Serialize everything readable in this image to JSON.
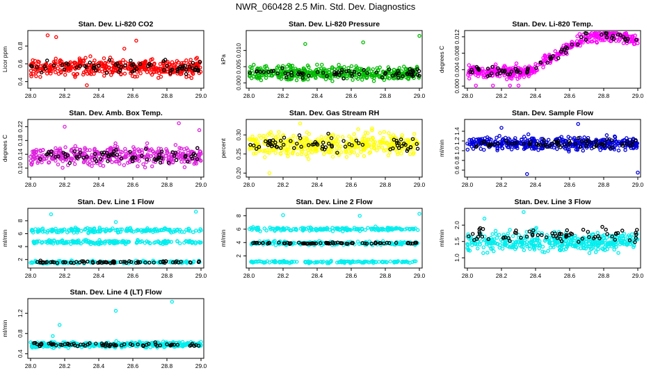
{
  "title": "NWR_060428  2.5 Min. Std. Dev. Diagnostics",
  "chart_data": [
    {
      "type": "scatter",
      "title": "Stan. Dev. Li-820 CO2",
      "ylabel": "Licor ppm",
      "color": "#ff0000",
      "xlim": [
        28.0,
        29.0
      ],
      "ylim": [
        0.35,
        0.95
      ],
      "xticks": [
        "28.0",
        "28.2",
        "28.4",
        "28.6",
        "28.8",
        "29.0"
      ],
      "yticks": [
        0.4,
        0.6,
        0.8
      ],
      "ytick_labels": [
        "0.4",
        "0.6",
        "0.8"
      ],
      "bands": [
        {
          "center": 0.56,
          "spread": 0.09,
          "n": 420
        }
      ],
      "black_points": 70,
      "outliers": [
        [
          28.1,
          0.92
        ],
        [
          28.15,
          0.9
        ],
        [
          28.33,
          0.36
        ],
        [
          28.55,
          0.77
        ],
        [
          28.62,
          0.86
        ]
      ]
    },
    {
      "type": "scatter",
      "title": "Stan. Dev. Li-820 Pressure",
      "ylabel": "kPa",
      "color": "#00bb00",
      "xlim": [
        28.0,
        29.0
      ],
      "ylim": [
        -0.001,
        0.0155
      ],
      "xticks": [
        "28.0",
        "28.2",
        "28.4",
        "28.6",
        "28.8",
        "29.0"
      ],
      "yticks": [
        0.0,
        0.005,
        0.01
      ],
      "ytick_labels": [
        "0.000",
        "0.005",
        "0.010"
      ],
      "bands": [
        {
          "center": 0.003,
          "spread": 0.002,
          "n": 420
        }
      ],
      "black_points": 70,
      "outliers": [
        [
          28.33,
          0.012
        ],
        [
          28.67,
          0.0125
        ],
        [
          29.0,
          0.0145
        ]
      ]
    },
    {
      "type": "scatter",
      "title": "Stan. Dev. Li-820 Temp.",
      "ylabel": "degrees C",
      "color": "#ff00ff",
      "xlim": [
        28.0,
        29.0
      ],
      "ylim": [
        0.0,
        0.013
      ],
      "xticks": [
        "28.0",
        "28.2",
        "28.4",
        "28.6",
        "28.8",
        "29.0"
      ],
      "yticks": [
        0.0,
        0.004,
        0.008,
        0.012
      ],
      "ytick_labels": [
        "0.000",
        "0.004",
        "0.008",
        "0.012"
      ],
      "trend": [
        [
          28.0,
          0.0035
        ],
        [
          28.35,
          0.0035
        ],
        [
          28.7,
          0.012
        ],
        [
          28.85,
          0.0125
        ],
        [
          29.0,
          0.011
        ]
      ],
      "trend_spread": 0.0015,
      "n": 420,
      "black_points": 70,
      "outliers": [
        [
          28.05,
          0.0
        ],
        [
          28.15,
          0.0
        ],
        [
          28.25,
          0.0
        ],
        [
          28.3,
          0.0
        ]
      ]
    },
    {
      "type": "scatter",
      "title": "Stan. Dev. Amb. Box Temp.",
      "ylabel": "degrees C",
      "color": "#dd22dd",
      "xlim": [
        28.0,
        29.0
      ],
      "ylim": [
        0.08,
        0.235
      ],
      "xticks": [
        "28.0",
        "28.2",
        "28.4",
        "28.6",
        "28.8",
        "29.0"
      ],
      "yticks": [
        0.1,
        0.14,
        0.18,
        0.22
      ],
      "ytick_labels": [
        "0.10",
        "0.14",
        "0.18",
        "0.22"
      ],
      "bands": [
        {
          "center": 0.135,
          "spread": 0.025,
          "n": 420
        }
      ],
      "black_points": 70,
      "outliers": [
        [
          28.2,
          0.22
        ],
        [
          28.87,
          0.23
        ],
        [
          28.99,
          0.21
        ]
      ]
    },
    {
      "type": "scatter",
      "title": "Stan. Dev. Gas Stream RH",
      "ylabel": "percent",
      "color": "#ffff00",
      "xlim": [
        28.0,
        29.0
      ],
      "ylim": [
        0.195,
        0.335
      ],
      "xticks": [
        "28.0",
        "28.2",
        "28.4",
        "28.6",
        "28.8",
        "29.0"
      ],
      "yticks": [
        0.2,
        0.25,
        0.3
      ],
      "ytick_labels": [
        "0.20",
        "0.25",
        "0.30"
      ],
      "bands": [
        {
          "center": 0.275,
          "spread": 0.028,
          "n": 420
        }
      ],
      "black_points": 70,
      "outliers": [
        [
          28.3,
          0.33
        ],
        [
          28.12,
          0.2
        ]
      ]
    },
    {
      "type": "scatter",
      "title": "Stan. Dev. Sample Flow",
      "ylabel": "ml/min",
      "color": "#0000dd",
      "xlim": [
        28.0,
        29.0
      ],
      "ylim": [
        0.5,
        1.6
      ],
      "xticks": [
        "28.0",
        "28.2",
        "28.4",
        "28.6",
        "28.8",
        "29.0"
      ],
      "yticks": [
        0.6,
        0.8,
        1.0,
        1.2,
        1.4
      ],
      "ytick_labels": [
        "0.6",
        "0.8",
        "1.0",
        "1.2",
        "1.4"
      ],
      "bands": [
        {
          "center": 1.15,
          "spread": 0.12,
          "n": 420
        }
      ],
      "black_points": 70,
      "outliers": [
        [
          28.35,
          0.52
        ],
        [
          28.2,
          1.47
        ],
        [
          28.65,
          1.55
        ],
        [
          29.0,
          0.55
        ]
      ]
    },
    {
      "type": "scatter",
      "title": "Stan. Dev. Line 1 Flow",
      "ylabel": "ml/min",
      "color": "#00eeee",
      "xlim": [
        28.0,
        29.0
      ],
      "ylim": [
        1.0,
        9.6
      ],
      "xticks": [
        "28.0",
        "28.2",
        "28.4",
        "28.6",
        "28.8",
        "29.0"
      ],
      "yticks": [
        2,
        4,
        6,
        8
      ],
      "ytick_labels": [
        "2",
        "4",
        "6",
        "8"
      ],
      "bands": [
        {
          "center": 6.5,
          "spread": 0.35,
          "n": 170
        },
        {
          "center": 4.7,
          "spread": 0.3,
          "n": 170
        },
        {
          "center": 1.6,
          "spread": 0.2,
          "n": 150
        }
      ],
      "black_band": 1.6,
      "black_points": 70,
      "outliers": [
        [
          28.12,
          9.0
        ],
        [
          28.97,
          9.4
        ],
        [
          28.5,
          7.8
        ]
      ]
    },
    {
      "type": "scatter",
      "title": "Stan. Dev. Line 2 Flow",
      "ylabel": "ml/min",
      "color": "#00eeee",
      "xlim": [
        28.0,
        29.0
      ],
      "ylim": [
        0.5,
        8.8
      ],
      "xticks": [
        "28.0",
        "28.2",
        "28.4",
        "28.6",
        "28.8",
        "29.0"
      ],
      "yticks": [
        2,
        4,
        6,
        8
      ],
      "ytick_labels": [
        "2",
        "4",
        "6",
        "8"
      ],
      "bands": [
        {
          "center": 6.0,
          "spread": 0.25,
          "n": 170
        },
        {
          "center": 3.9,
          "spread": 0.3,
          "n": 170
        },
        {
          "center": 1.1,
          "spread": 0.15,
          "n": 150
        }
      ],
      "black_band": 3.9,
      "black_points": 70,
      "outliers": [
        [
          28.2,
          8.1
        ],
        [
          28.65,
          8.0
        ],
        [
          29.0,
          8.3
        ]
      ]
    },
    {
      "type": "scatter",
      "title": "Stan. Dev. Line 3 Flow",
      "ylabel": "ml/min",
      "color": "#00eeee",
      "xlim": [
        28.0,
        29.0
      ],
      "ylim": [
        0.75,
        2.45
      ],
      "xticks": [
        "28.0",
        "28.2",
        "28.4",
        "28.6",
        "28.8",
        "29.0"
      ],
      "yticks": [
        1.0,
        1.5,
        2.0
      ],
      "ytick_labels": [
        "1.0",
        "1.5",
        "2.0"
      ],
      "bands": [
        {
          "center": 1.5,
          "spread": 0.28,
          "n": 420
        }
      ],
      "black_band": 1.7,
      "black_points": 70,
      "outliers": [
        [
          28.33,
          2.4
        ],
        [
          28.1,
          2.2
        ]
      ]
    },
    {
      "type": "scatter",
      "title": "Stan. Dev. Line 4 (LT) Flow",
      "ylabel": "ml/min",
      "color": "#00eeee",
      "xlim": [
        28.0,
        29.0
      ],
      "ylim": [
        0.35,
        1.45
      ],
      "xticks": [
        "28.0",
        "28.2",
        "28.4",
        "28.6",
        "28.8",
        "29.0"
      ],
      "yticks": [
        0.4,
        0.8,
        1.2
      ],
      "ytick_labels": [
        "0.4",
        "0.8",
        "1.2"
      ],
      "bands": [
        {
          "center": 0.58,
          "spread": 0.05,
          "n": 420
        }
      ],
      "black_points": 70,
      "outliers": [
        [
          28.17,
          0.97
        ],
        [
          28.5,
          1.25
        ],
        [
          28.83,
          1.43
        ],
        [
          28.13,
          0.75
        ]
      ]
    }
  ]
}
